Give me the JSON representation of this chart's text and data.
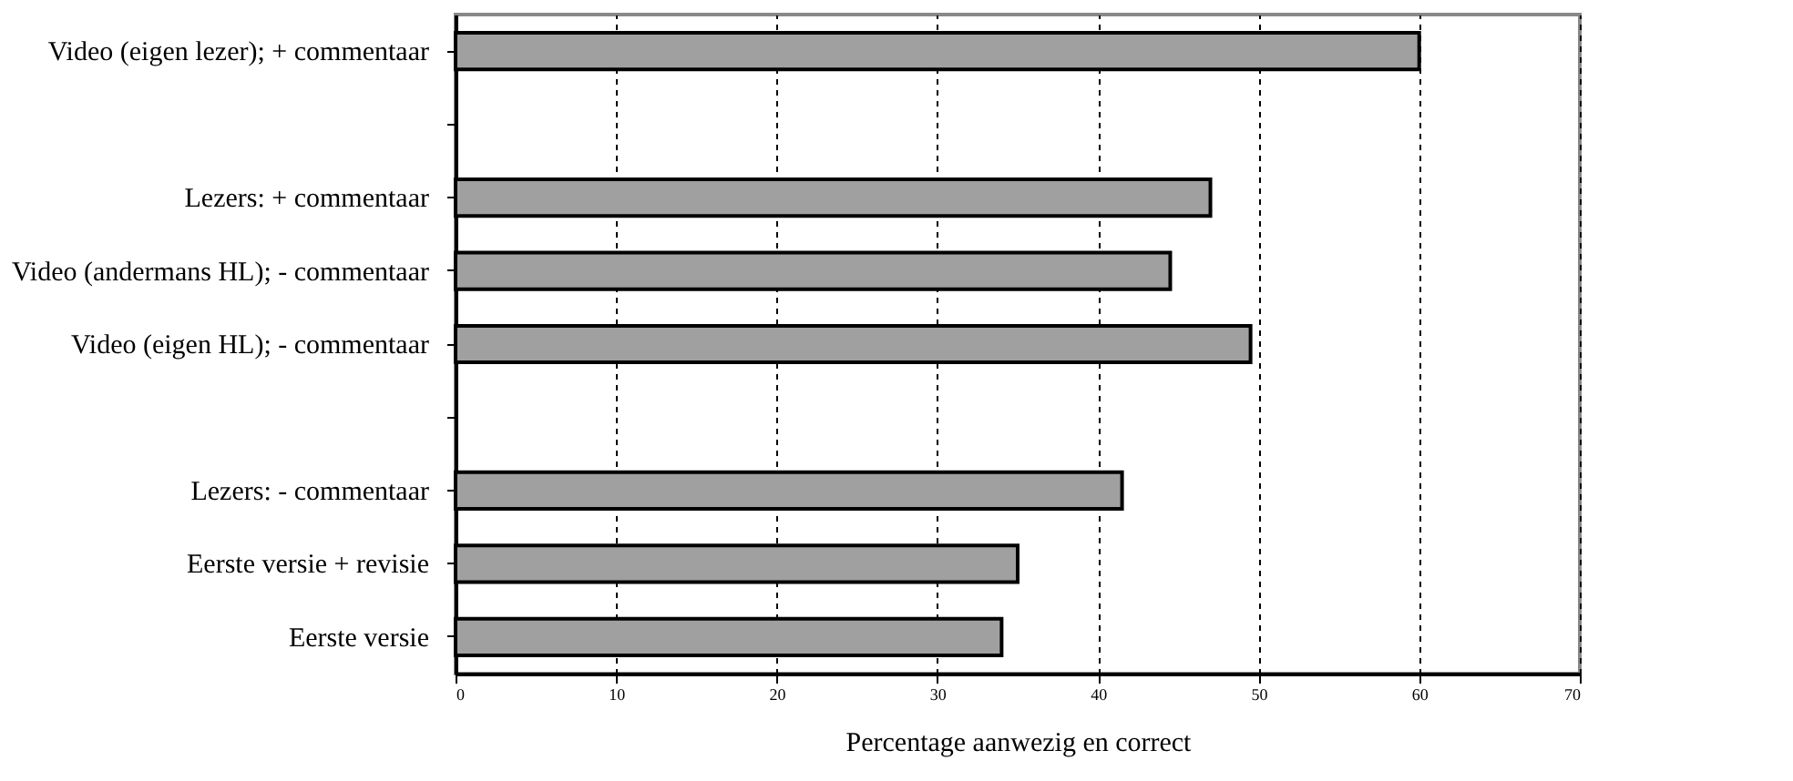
{
  "chart_data": {
    "type": "bar",
    "orientation": "horizontal",
    "xlabel": "Percentage aanwezig en correct",
    "categories": [
      "Video (eigen lezer); + commentaar",
      null,
      "Lezers: + commentaar",
      "Video (andermans HL); - commentaar",
      "Video (eigen HL); - commentaar",
      null,
      "Lezers: - commentaar",
      "Eerste versie + revisie",
      "Eerste versie"
    ],
    "values": [
      60,
      null,
      47,
      44.5,
      49.5,
      null,
      41.5,
      35,
      34
    ],
    "color": "#a0a0a0",
    "xlim": [
      0,
      70
    ],
    "xticks": [
      0,
      10,
      20,
      30,
      40,
      50,
      60,
      70
    ],
    "grid": "x"
  }
}
